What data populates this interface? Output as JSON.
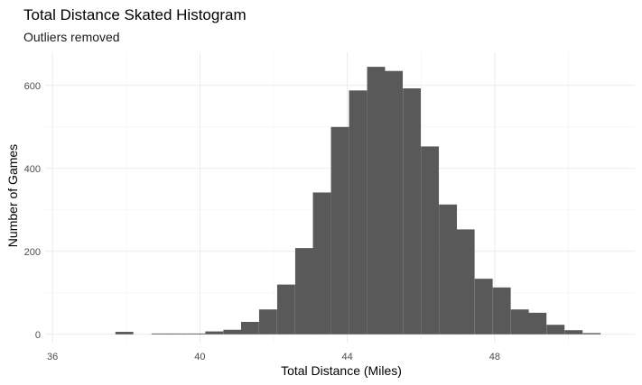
{
  "chart_data": {
    "type": "bar",
    "title": "Total Distance Skated Histogram",
    "subtitle": "Outliers removed",
    "xlabel": "Total Distance (Miles)",
    "ylabel": "Number of Games",
    "xlim": [
      35.8,
      51.8
    ],
    "ylim": [
      -20,
      680
    ],
    "x_ticks": [
      36,
      40,
      44,
      48
    ],
    "y_ticks": [
      0,
      200,
      400,
      600
    ],
    "x_tick_labels": [
      "36",
      "40",
      "44",
      "48"
    ],
    "y_tick_labels": [
      "0",
      "200",
      "400",
      "600"
    ],
    "grid": true,
    "legend": "none",
    "bar_color": "#595959",
    "bin_width": 0.4875,
    "bins": [
      {
        "center": 37.95,
        "count": 6
      },
      {
        "center": 38.44,
        "count": 0
      },
      {
        "center": 38.93,
        "count": 2
      },
      {
        "center": 39.41,
        "count": 2
      },
      {
        "center": 39.9,
        "count": 2
      },
      {
        "center": 40.39,
        "count": 7
      },
      {
        "center": 40.88,
        "count": 11
      },
      {
        "center": 41.36,
        "count": 30
      },
      {
        "center": 41.85,
        "count": 60
      },
      {
        "center": 42.34,
        "count": 120
      },
      {
        "center": 42.83,
        "count": 208
      },
      {
        "center": 43.31,
        "count": 342
      },
      {
        "center": 43.8,
        "count": 500
      },
      {
        "center": 44.29,
        "count": 588
      },
      {
        "center": 44.78,
        "count": 645
      },
      {
        "center": 45.26,
        "count": 635
      },
      {
        "center": 45.75,
        "count": 593
      },
      {
        "center": 46.24,
        "count": 453
      },
      {
        "center": 46.73,
        "count": 313
      },
      {
        "center": 47.21,
        "count": 253
      },
      {
        "center": 47.7,
        "count": 134
      },
      {
        "center": 48.19,
        "count": 113
      },
      {
        "center": 48.68,
        "count": 60
      },
      {
        "center": 49.16,
        "count": 52
      },
      {
        "center": 49.65,
        "count": 23
      },
      {
        "center": 50.14,
        "count": 10
      },
      {
        "center": 50.63,
        "count": 3
      }
    ]
  }
}
